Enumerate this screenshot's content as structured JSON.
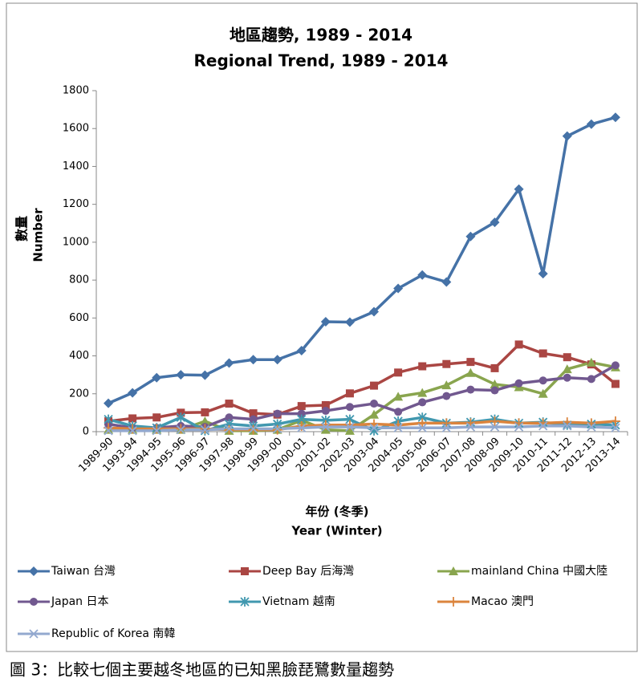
{
  "chart_data": {
    "type": "line",
    "title": "地區趨勢, 1989 - 2014",
    "subtitle": "Regional Trend, 1989 - 2014",
    "y_label": "數量",
    "y_label_en": "Number",
    "x_label": "年份 (冬季)",
    "x_label_en": "Year (Winter)",
    "categories": [
      "1989-90",
      "1993-94",
      "1994-95",
      "1995-96",
      "1996-97",
      "1997-98",
      "1998-99",
      "1999-00",
      "2000-01",
      "2001-02",
      "2002-03",
      "2003-04",
      "2004-05",
      "2005-06",
      "2006-07",
      "2007-08",
      "2008-09",
      "2009-10",
      "2010-11",
      "2011-12",
      "2012-13",
      "2013-14"
    ],
    "ylim": [
      0,
      1800
    ],
    "yticks": [
      0,
      200,
      400,
      600,
      800,
      1000,
      1200,
      1400,
      1600,
      1800
    ],
    "grid": false,
    "legend": "bottom",
    "series": [
      {
        "name": "Taiwan 台灣",
        "color": "#4572a7",
        "marker": "diamond",
        "values": [
          150,
          205,
          285,
          300,
          298,
          362,
          380,
          380,
          428,
          580,
          578,
          633,
          756,
          827,
          790,
          1030,
          1105,
          1280,
          834,
          1560,
          1623,
          1659
        ]
      },
      {
        "name": "Deep Bay 后海灣",
        "color": "#aa4643",
        "marker": "square",
        "values": [
          55,
          70,
          75,
          100,
          102,
          148,
          97,
          90,
          135,
          140,
          202,
          243,
          312,
          345,
          357,
          368,
          335,
          460,
          413,
          393,
          355,
          252
        ]
      },
      {
        "name": "mainland China 中國大陸",
        "color": "#89a54e",
        "marker": "triangle",
        "values": [
          10,
          10,
          10,
          10,
          55,
          5,
          5,
          10,
          60,
          10,
          5,
          90,
          185,
          205,
          245,
          310,
          250,
          235,
          200,
          330,
          365,
          340
        ]
      },
      {
        "name": "Japan 日本",
        "color": "#71588f",
        "marker": "circle",
        "values": [
          40,
          20,
          20,
          30,
          25,
          75,
          65,
          95,
          95,
          110,
          130,
          148,
          105,
          155,
          188,
          222,
          218,
          255,
          270,
          285,
          278,
          350
        ]
      },
      {
        "name": "Vietnam 越南",
        "color": "#4198af",
        "marker": "asterisk",
        "values": [
          65,
          30,
          20,
          75,
          5,
          40,
          30,
          40,
          65,
          60,
          65,
          5,
          55,
          75,
          45,
          50,
          65,
          45,
          50,
          35,
          40,
          35
        ]
      },
      {
        "name": "Macao 澳門",
        "color": "#db843d",
        "marker": "plus",
        "values": [
          20,
          15,
          15,
          15,
          15,
          10,
          10,
          10,
          30,
          35,
          35,
          40,
          35,
          45,
          45,
          45,
          55,
          45,
          45,
          50,
          45,
          55
        ]
      },
      {
        "name": "Republic of Korea 南韓",
        "color": "#93a9cf",
        "marker": "x",
        "values": [
          5,
          5,
          5,
          10,
          10,
          15,
          15,
          15,
          20,
          25,
          25,
          20,
          20,
          20,
          20,
          25,
          25,
          25,
          30,
          30,
          25,
          20
        ]
      }
    ]
  },
  "caption": "圖 3：比較七個主要越冬地區的已知黑臉琵鷺數量趨勢"
}
